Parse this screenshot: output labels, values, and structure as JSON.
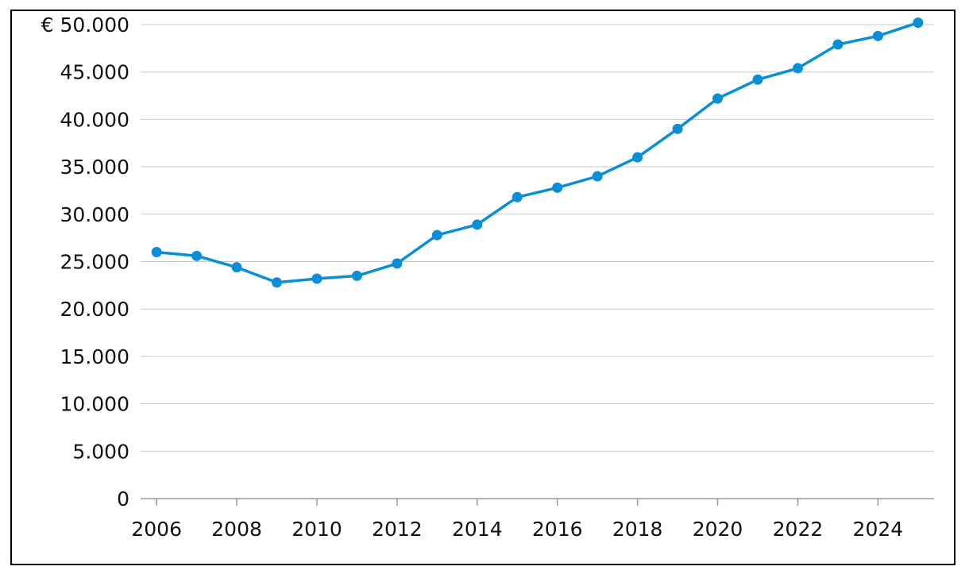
{
  "chart_data": {
    "type": "line",
    "title": "",
    "xlabel": "",
    "ylabel": "",
    "x": [
      2006,
      2007,
      2008,
      2009,
      2010,
      2011,
      2012,
      2013,
      2014,
      2015,
      2016,
      2017,
      2018,
      2019,
      2020,
      2021,
      2022,
      2023,
      2024,
      2025
    ],
    "series": [
      {
        "values": [
          26000,
          25600,
          24400,
          22800,
          23200,
          23500,
          24800,
          27800,
          28900,
          31800,
          32800,
          34000,
          36000,
          39000,
          42200,
          44200,
          45400,
          47900,
          48800,
          50200
        ]
      }
    ],
    "xlim": [
      2005.6,
      2025.4
    ],
    "ylim": [
      0,
      50000
    ],
    "x_tick_values": [
      2006,
      2008,
      2010,
      2012,
      2014,
      2016,
      2018,
      2020,
      2022,
      2024
    ],
    "x_tick_labels": [
      "2006",
      "2008",
      "2010",
      "2012",
      "2014",
      "2016",
      "2018",
      "2020",
      "2022",
      "2024"
    ],
    "y_tick_values": [
      0,
      5000,
      10000,
      15000,
      20000,
      25000,
      30000,
      35000,
      40000,
      45000,
      50000
    ],
    "y_tick_labels": [
      "0",
      "5.000",
      "10.000",
      "15.000",
      "20.000",
      "25.000",
      "30.000",
      "35.000",
      "40.000",
      "45.000",
      "€ 50.000"
    ],
    "grid": true,
    "colors": {
      "line": "#0a8fd6",
      "grid": "#c8c8c8",
      "axis": "#9a9a9a",
      "frame": "#000000"
    }
  }
}
